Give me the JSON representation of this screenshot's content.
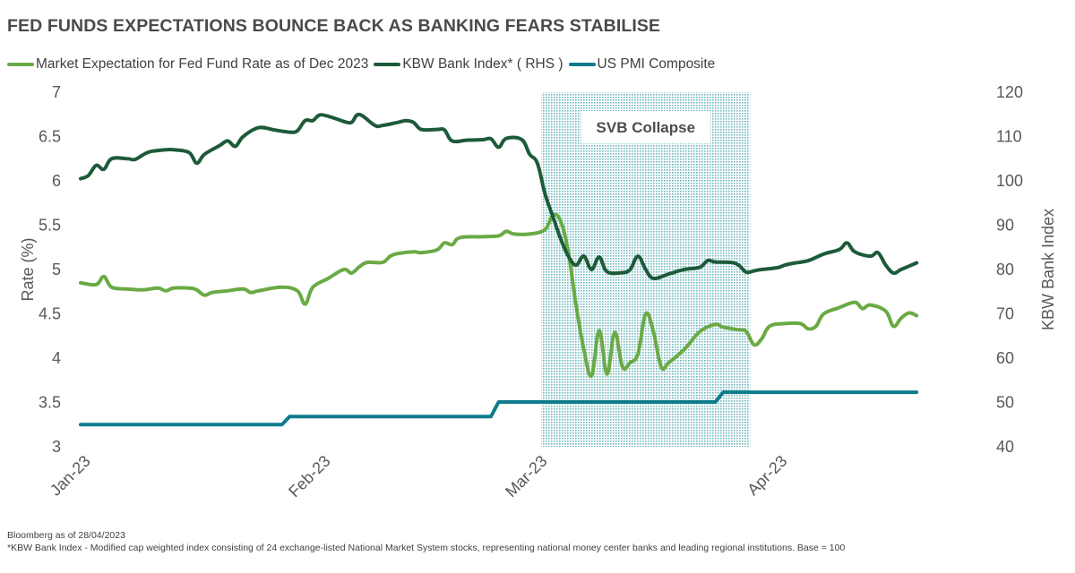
{
  "title": "FED FUNDS EXPECTATIONS BOUNCE BACK AS BANKING FEARS STABILISE",
  "footnotes": [
    "Bloomberg as of 28/04/2023",
    "*KBW Bank Index - Modified cap weighted index consisting of 24 exchange-listed National Market System stocks, representing national money center banks and leading regional institutions. Base = 100"
  ],
  "chart_data": {
    "type": "line",
    "title": "FED FUNDS EXPECTATIONS BOUNCE BACK AS BANKING FEARS STABILISE",
    "ylabel": "Rate (%)",
    "y2label": "KBW Bank Index",
    "ylim": [
      3,
      7
    ],
    "y2lim": [
      40,
      120
    ],
    "yticks": [
      "3",
      "3.5",
      "4",
      "4.5",
      "5",
      "5.5",
      "6",
      "6.5",
      "7"
    ],
    "y2ticks": [
      "40",
      "50",
      "60",
      "70",
      "80",
      "90",
      "100",
      "110",
      "120"
    ],
    "xlim": [
      0,
      117
    ],
    "xticks": [
      {
        "label": "Jan-23",
        "x": 0
      },
      {
        "label": "Feb-23",
        "x": 31
      },
      {
        "label": "Mar-23",
        "x": 59
      },
      {
        "label": "Apr-23",
        "x": 90
      }
    ],
    "legend_position": "top-left",
    "annotation": {
      "label": "SVB Collapse",
      "x_start": 59.5,
      "x_end": 86.5
    },
    "colors": {
      "fed": "#6aaa45",
      "kbw": "#1d5a3a",
      "pmi": "#0f7c8d",
      "shade": "#a9d3d5"
    },
    "series": [
      {
        "name": "Market Expectation for Fed Fund Rate as of Dec 2023",
        "axis": "left",
        "color": "#6aaa45",
        "points": [
          [
            0,
            4.85
          ],
          [
            2,
            4.83
          ],
          [
            3,
            4.92
          ],
          [
            4,
            4.8
          ],
          [
            6,
            4.78
          ],
          [
            8,
            4.77
          ],
          [
            10,
            4.79
          ],
          [
            11,
            4.76
          ],
          [
            12,
            4.79
          ],
          [
            14,
            4.79
          ],
          [
            15,
            4.77
          ],
          [
            16,
            4.71
          ],
          [
            17,
            4.74
          ],
          [
            19,
            4.76
          ],
          [
            21,
            4.78
          ],
          [
            22,
            4.74
          ],
          [
            23,
            4.76
          ],
          [
            26,
            4.8
          ],
          [
            28,
            4.76
          ],
          [
            29,
            4.61
          ],
          [
            30,
            4.8
          ],
          [
            32,
            4.9
          ],
          [
            34,
            5.0
          ],
          [
            35,
            4.96
          ],
          [
            36,
            5.03
          ],
          [
            37,
            5.08
          ],
          [
            39,
            5.08
          ],
          [
            40,
            5.15
          ],
          [
            41,
            5.18
          ],
          [
            43,
            5.2
          ],
          [
            44,
            5.19
          ],
          [
            46,
            5.22
          ],
          [
            47,
            5.3
          ],
          [
            48,
            5.28
          ],
          [
            49,
            5.36
          ],
          [
            52,
            5.37
          ],
          [
            54,
            5.38
          ],
          [
            55,
            5.43
          ],
          [
            56,
            5.4
          ],
          [
            58,
            5.4
          ],
          [
            60,
            5.45
          ],
          [
            61,
            5.61
          ],
          [
            62,
            5.55
          ],
          [
            63,
            5.2
          ],
          [
            64,
            4.6
          ],
          [
            65,
            4.1
          ],
          [
            66,
            3.8
          ],
          [
            67,
            4.31
          ],
          [
            68,
            3.82
          ],
          [
            69,
            4.29
          ],
          [
            70,
            3.9
          ],
          [
            71,
            3.95
          ],
          [
            72,
            4.05
          ],
          [
            73,
            4.5
          ],
          [
            74,
            4.3
          ],
          [
            75,
            3.9
          ],
          [
            76,
            3.95
          ],
          [
            78,
            4.1
          ],
          [
            80,
            4.3
          ],
          [
            82,
            4.38
          ],
          [
            83,
            4.35
          ],
          [
            85,
            4.32
          ],
          [
            86,
            4.3
          ],
          [
            87,
            4.15
          ],
          [
            88,
            4.22
          ],
          [
            89,
            4.36
          ],
          [
            91,
            4.39
          ],
          [
            93,
            4.39
          ],
          [
            94,
            4.33
          ],
          [
            95,
            4.36
          ],
          [
            96,
            4.5
          ],
          [
            98,
            4.57
          ],
          [
            100,
            4.63
          ],
          [
            101,
            4.56
          ],
          [
            102,
            4.6
          ],
          [
            104,
            4.53
          ],
          [
            105,
            4.36
          ],
          [
            106,
            4.45
          ],
          [
            107,
            4.51
          ],
          [
            108,
            4.48
          ]
        ]
      },
      {
        "name": "KBW Bank Index* ( RHS )",
        "axis": "right",
        "color": "#1d5a3a",
        "points": [
          [
            0,
            100.5
          ],
          [
            1,
            101.2
          ],
          [
            2,
            103.5
          ],
          [
            3,
            102.6
          ],
          [
            4,
            105
          ],
          [
            6,
            105
          ],
          [
            7,
            104.8
          ],
          [
            8,
            105.8
          ],
          [
            9,
            106.6
          ],
          [
            11,
            107
          ],
          [
            12,
            107
          ],
          [
            14,
            106.4
          ],
          [
            15,
            104
          ],
          [
            16,
            106
          ],
          [
            18,
            108
          ],
          [
            19,
            109
          ],
          [
            20,
            107.8
          ],
          [
            21,
            110
          ],
          [
            23,
            112
          ],
          [
            25,
            111.5
          ],
          [
            27,
            111
          ],
          [
            28,
            111.3
          ],
          [
            29,
            113.6
          ],
          [
            30,
            113.6
          ],
          [
            31,
            114.9
          ],
          [
            33,
            114
          ],
          [
            34,
            113.4
          ],
          [
            35,
            113.2
          ],
          [
            36,
            115
          ],
          [
            38,
            112.5
          ],
          [
            39,
            112.5
          ],
          [
            41,
            113.2
          ],
          [
            42,
            113.6
          ],
          [
            43,
            113.2
          ],
          [
            44,
            111.6
          ],
          [
            46,
            111.6
          ],
          [
            47,
            111.5
          ],
          [
            48,
            109
          ],
          [
            50,
            109.2
          ],
          [
            52,
            109.3
          ],
          [
            53,
            109.5
          ],
          [
            54,
            107.6
          ],
          [
            55,
            109.6
          ],
          [
            57,
            109.3
          ],
          [
            58,
            106
          ],
          [
            59,
            104
          ],
          [
            60,
            97
          ],
          [
            61,
            92
          ],
          [
            62,
            87
          ],
          [
            63,
            83
          ],
          [
            64,
            81
          ],
          [
            65,
            83
          ],
          [
            66,
            80
          ],
          [
            67,
            82.8
          ],
          [
            68,
            79.5
          ],
          [
            70,
            79.3
          ],
          [
            71,
            80
          ],
          [
            72,
            83
          ],
          [
            73,
            80
          ],
          [
            74,
            78
          ],
          [
            76,
            79
          ],
          [
            78,
            80
          ],
          [
            80,
            80.5
          ],
          [
            81,
            82
          ],
          [
            82,
            81.7
          ],
          [
            84,
            81.6
          ],
          [
            85,
            81
          ],
          [
            86,
            79.4
          ],
          [
            87,
            79.7
          ],
          [
            88,
            80
          ],
          [
            90,
            80.4
          ],
          [
            91,
            81
          ],
          [
            92,
            81.4
          ],
          [
            94,
            82
          ],
          [
            96,
            83.5
          ],
          [
            98,
            84.5
          ],
          [
            99,
            86
          ],
          [
            100,
            84
          ],
          [
            102,
            83
          ],
          [
            103,
            83.8
          ],
          [
            104,
            81
          ],
          [
            105,
            79.2
          ],
          [
            106,
            80
          ],
          [
            108,
            81.5
          ]
        ]
      },
      {
        "name": "US PMI Composite",
        "axis": "right",
        "color": "#0f7c8d",
        "points": [
          [
            0,
            45
          ],
          [
            26,
            45
          ],
          [
            27,
            46.8
          ],
          [
            53,
            46.8
          ],
          [
            54,
            50.1
          ],
          [
            82,
            50.1
          ],
          [
            83,
            52.3
          ],
          [
            108,
            52.3
          ]
        ]
      }
    ]
  }
}
